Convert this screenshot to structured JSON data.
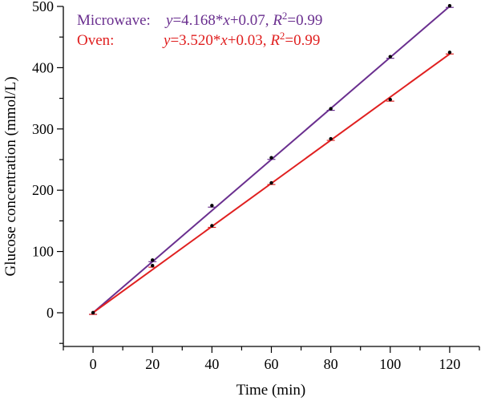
{
  "chart_data": {
    "type": "scatter",
    "title": "",
    "xlabel": "Time (min)",
    "ylabel": "Glucose concentration (mmol/L)",
    "xlim": [
      -10,
      130
    ],
    "ylim": [
      -55,
      500
    ],
    "xticks": [
      0,
      20,
      40,
      60,
      80,
      100,
      120
    ],
    "xtick_labels": [
      "0",
      "20",
      "40",
      "60",
      "80",
      "100",
      "120"
    ],
    "yticks": [
      0,
      100,
      200,
      300,
      400,
      500
    ],
    "ytick_labels": [
      "0",
      "100",
      "200",
      "300",
      "400",
      "500"
    ],
    "grid": false,
    "legend_position": "top-left",
    "series": [
      {
        "name": "Microwave:",
        "equation": "y=4.168*x+0.07, R2=0.99",
        "color": "#6a2f8f",
        "x": [
          0,
          20,
          40,
          60,
          80,
          100,
          120
        ],
        "y": [
          0,
          86,
          175,
          253,
          333,
          418,
          501
        ],
        "fit": {
          "slope": 4.168,
          "intercept": 0.07
        }
      },
      {
        "name": "Oven:",
        "equation": "y=3.520*x+0.03, R2=0.99",
        "color": "#e02020",
        "x": [
          0,
          20,
          40,
          60,
          80,
          100,
          120
        ],
        "y": [
          0,
          77,
          142,
          212,
          284,
          348,
          425
        ],
        "fit": {
          "slope": 3.52,
          "intercept": 0.03
        }
      }
    ]
  }
}
